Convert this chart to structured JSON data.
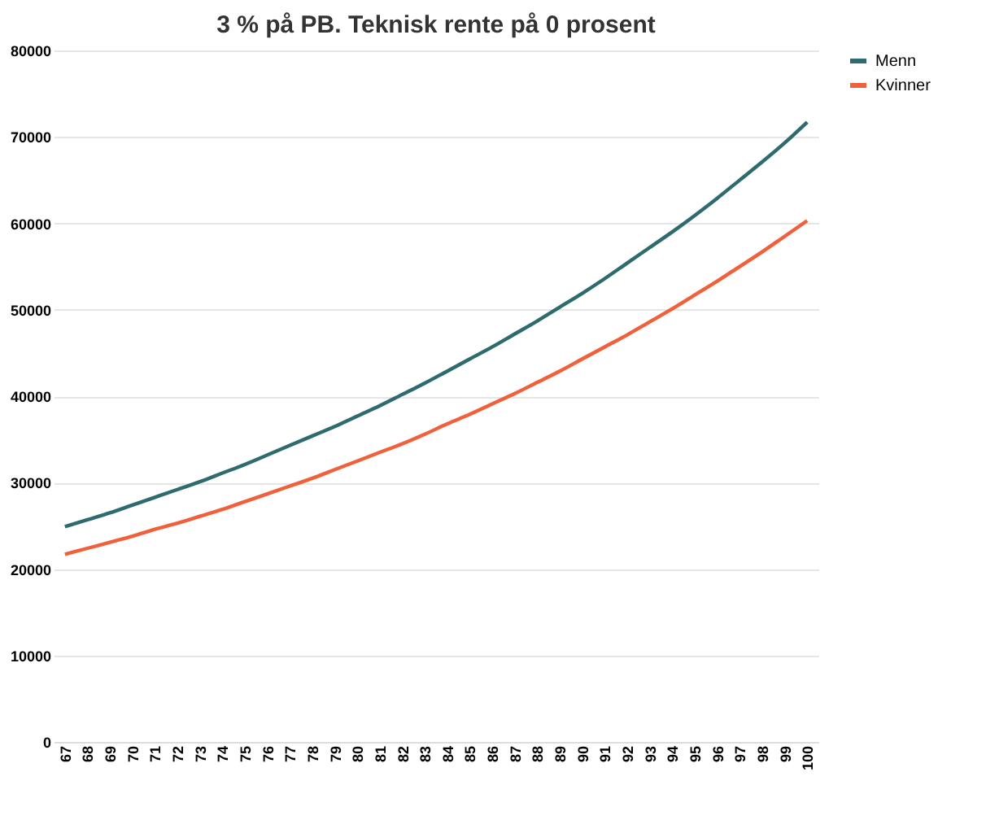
{
  "chart_data": {
    "type": "line",
    "title": "3 % på PB. Teknisk rente på 0 prosent",
    "categories": [
      "67",
      "68",
      "69",
      "70",
      "71",
      "72",
      "73",
      "74",
      "75",
      "76",
      "77",
      "78",
      "79",
      "80",
      "81",
      "82",
      "83",
      "84",
      "85",
      "86",
      "87",
      "88",
      "89",
      "90",
      "91",
      "92",
      "93",
      "94",
      "95",
      "96",
      "97",
      "98",
      "99",
      "100"
    ],
    "series": [
      {
        "name": "Menn",
        "color": "#2e6b6e",
        "values": [
          24900,
          25700,
          26500,
          27400,
          28300,
          29200,
          30100,
          31100,
          32100,
          33200,
          34300,
          35400,
          36500,
          37700,
          38900,
          40200,
          41500,
          42900,
          44300,
          45700,
          47200,
          48700,
          50300,
          51900,
          53600,
          55400,
          57200,
          59000,
          60900,
          62900,
          65000,
          67100,
          69300,
          71700
        ]
      },
      {
        "name": "Kvinner",
        "color": "#f0603a",
        "values": [
          21700,
          22400,
          23100,
          23800,
          24600,
          25300,
          26100,
          26900,
          27800,
          28700,
          29600,
          30500,
          31500,
          32500,
          33500,
          34500,
          35600,
          36800,
          37900,
          39100,
          40300,
          41600,
          42900,
          44300,
          45700,
          47100,
          48600,
          50100,
          51700,
          53300,
          55000,
          56700,
          58500,
          60300
        ]
      }
    ],
    "ylim": [
      0,
      80000
    ],
    "yticks": [
      0,
      10000,
      20000,
      30000,
      40000,
      50000,
      60000,
      70000,
      80000
    ],
    "grid": "y",
    "legend": "right",
    "marker": "none",
    "line_style": "solid"
  }
}
